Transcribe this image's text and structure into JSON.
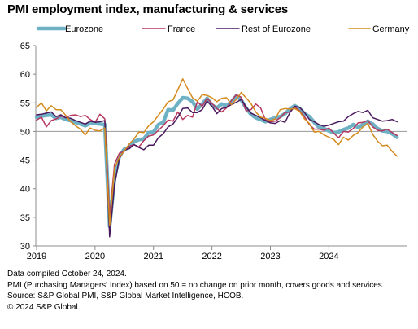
{
  "title": "PMI employment index, manufacturing & services",
  "footnotes": [
    "Data compiled October 24, 2024.",
    "PMI (Purchasing Managers' Index) based on 50 = no change on prior month, covers goods and services.",
    "Source: S&P Global PMI, S&P Global Market Intelligence, HCOB.",
    "© 2024 S&P Global."
  ],
  "chart_data": {
    "type": "line",
    "title": "PMI employment index, manufacturing & services",
    "xlabel": "",
    "ylabel": "",
    "ylim": [
      30,
      65
    ],
    "yticks": [
      30,
      35,
      40,
      45,
      50,
      55,
      60,
      65
    ],
    "xlim": [
      "2019-01",
      "2024-10"
    ],
    "xticks": [
      "2019",
      "2020",
      "2021",
      "2022",
      "2023",
      "2024"
    ],
    "reference_line": 50,
    "legend_position": "top",
    "colors": {
      "Eurozone": "#6fb1c4",
      "France": "#b5365e",
      "Rest of Eurozone": "#4a1a5e",
      "Germany": "#d48a1c",
      "reference": "#9a9a9a"
    },
    "series": [
      {
        "name": "Eurozone",
        "values": [
          52.5,
          52.7,
          52.8,
          52.9,
          52.3,
          52.5,
          52.1,
          51.9,
          51.6,
          51.3,
          51.0,
          51.4,
          51.4,
          51.3,
          51.2,
          33.4,
          41.8,
          45.7,
          46.9,
          47.2,
          48.2,
          48.6,
          48.7,
          49.8,
          49.9,
          51.2,
          51.6,
          53.8,
          53.7,
          54.9,
          55.9,
          55.8,
          55.2,
          53.9,
          54.8,
          55.8,
          54.6,
          54.1,
          54.8,
          54.5,
          55.2,
          56.2,
          55.5,
          54.1,
          53.0,
          52.4,
          52.1,
          51.7,
          52.1,
          52.4,
          52.6,
          53.1,
          53.9,
          54.5,
          54.0,
          53.1,
          52.6,
          51.6,
          50.7,
          50.5,
          50.1,
          49.8,
          49.9,
          50.3,
          50.6,
          51.2,
          50.7,
          51.2,
          51.8,
          51.3,
          50.5,
          50.1,
          50.0,
          49.6,
          49.0
        ]
      },
      {
        "name": "France",
        "values": [
          52.0,
          52.5,
          50.8,
          51.9,
          52.2,
          52.7,
          52.4,
          52.8,
          52.9,
          52.6,
          52.8,
          52.1,
          51.6,
          53.0,
          52.2,
          35.0,
          44.3,
          46.2,
          46.5,
          47.4,
          47.7,
          47.3,
          48.4,
          49.2,
          49.4,
          50.2,
          51.0,
          52.0,
          51.8,
          53.4,
          52.1,
          52.8,
          52.5,
          55.2,
          54.4,
          55.8,
          54.9,
          54.0,
          53.4,
          54.1,
          55.4,
          56.4,
          56.0,
          53.6,
          53.8,
          54.8,
          54.1,
          52.0,
          51.7,
          51.8,
          52.4,
          53.3,
          53.4,
          54.3,
          53.6,
          52.6,
          51.2,
          50.4,
          50.4,
          50.2,
          50.6,
          49.7,
          48.9,
          50.0,
          49.9,
          50.5,
          51.5,
          51.6,
          51.9,
          50.8,
          50.2,
          50.1,
          50.4,
          49.8,
          49.3
        ]
      },
      {
        "name": "Rest of Eurozone",
        "values": [
          52.9,
          53.0,
          53.2,
          53.4,
          52.6,
          52.9,
          52.4,
          52.3,
          51.9,
          51.6,
          51.3,
          51.8,
          51.6,
          51.7,
          51.9,
          31.6,
          40.7,
          45.3,
          46.7,
          47.0,
          47.7,
          47.2,
          46.8,
          47.6,
          47.6,
          48.9,
          49.6,
          50.8,
          51.3,
          52.5,
          54.0,
          54.1,
          53.3,
          53.3,
          53.8,
          55.3,
          54.4,
          53.1,
          54.0,
          54.2,
          54.7,
          55.1,
          55.6,
          54.3,
          53.2,
          52.8,
          52.4,
          51.9,
          51.5,
          51.4,
          51.9,
          51.6,
          53.3,
          54.4,
          54.2,
          53.3,
          52.1,
          51.7,
          51.2,
          50.9,
          51.1,
          51.4,
          51.7,
          51.8,
          52.6,
          53.1,
          53.5,
          53.3,
          53.7,
          52.4,
          52.1,
          51.8,
          51.9,
          52.1,
          51.7
        ]
      },
      {
        "name": "Germany",
        "values": [
          54.2,
          55.0,
          53.6,
          54.5,
          53.8,
          53.8,
          52.8,
          51.7,
          51.0,
          50.4,
          49.4,
          50.6,
          50.2,
          50.1,
          50.6,
          33.6,
          43.6,
          45.5,
          46.6,
          47.8,
          48.7,
          49.9,
          49.8,
          51.0,
          51.7,
          52.8,
          53.9,
          55.2,
          55.5,
          57.3,
          59.2,
          57.5,
          55.9,
          55.3,
          56.4,
          56.3,
          55.9,
          55.2,
          55.8,
          55.9,
          54.7,
          55.6,
          56.8,
          55.9,
          54.9,
          53.4,
          52.5,
          52.3,
          51.9,
          52.2,
          53.8,
          54.0,
          53.9,
          54.0,
          53.5,
          52.2,
          51.4,
          49.9,
          50.0,
          49.4,
          49.0,
          48.6,
          47.7,
          49.0,
          48.5,
          49.3,
          49.8,
          50.8,
          51.4,
          49.5,
          48.3,
          47.5,
          47.6,
          46.5,
          45.7
        ]
      }
    ]
  }
}
